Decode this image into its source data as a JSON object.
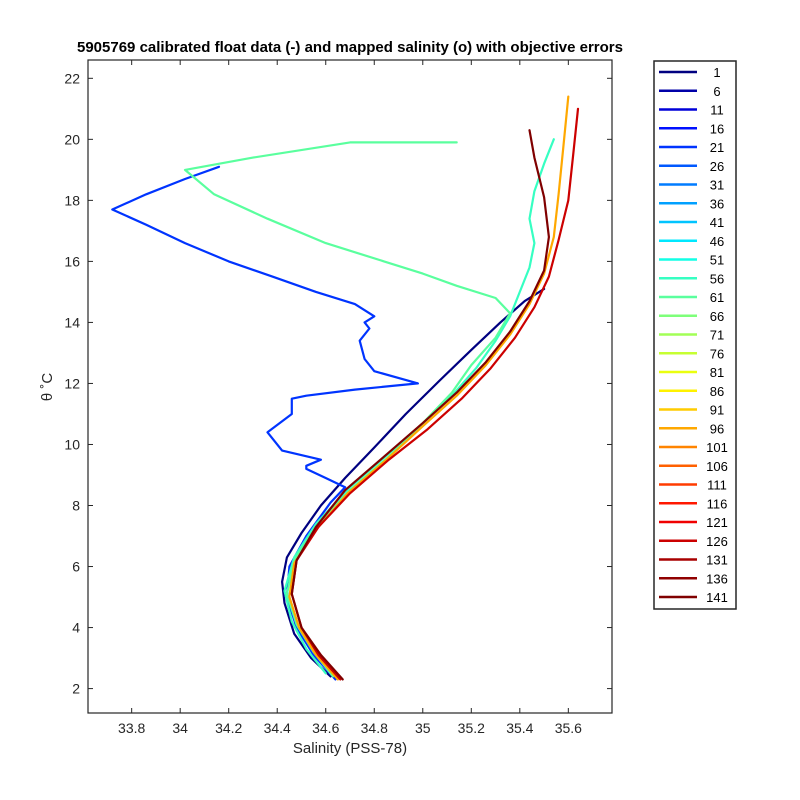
{
  "chart_data": {
    "type": "line",
    "title": "5905769 calibrated float data (-) and mapped salinity (o) with objective errors",
    "xlabel": "Salinity (PSS-78)",
    "ylabel": "θ ˚C",
    "xlim": [
      33.62,
      35.78
    ],
    "ylim": [
      1.2,
      22.6
    ],
    "xticks": [
      33.8,
      34,
      34.2,
      34.4,
      34.6,
      34.8,
      35,
      35.2,
      35.4,
      35.6
    ],
    "xtick_labels": [
      "33.8",
      "34",
      "34.2",
      "34.4",
      "34.6",
      "34.8",
      "35",
      "35.2",
      "35.4",
      "35.6"
    ],
    "yticks": [
      2,
      4,
      6,
      8,
      10,
      12,
      14,
      16,
      18,
      20,
      22
    ],
    "ytick_labels": [
      "2",
      "4",
      "6",
      "8",
      "10",
      "12",
      "14",
      "16",
      "18",
      "20",
      "22"
    ],
    "grid": false,
    "legend": {
      "placement": "outside-right",
      "entries": [
        "1",
        "6",
        "11",
        "16",
        "21",
        "26",
        "31",
        "36",
        "41",
        "46",
        "51",
        "56",
        "61",
        "66",
        "71",
        "76",
        "81",
        "86",
        "91",
        "96",
        "101",
        "106",
        "111",
        "116",
        "121",
        "126",
        "131",
        "136",
        "141"
      ],
      "colors": [
        "#000080",
        "#0000a8",
        "#0000d8",
        "#0010ff",
        "#0034ff",
        "#0058ff",
        "#007cff",
        "#00a0ff",
        "#00c4ff",
        "#00e8ff",
        "#12ffe6",
        "#36ffc2",
        "#5aff9e",
        "#7eff7a",
        "#a2ff56",
        "#c6ff32",
        "#eaff0e",
        "#fff200",
        "#ffcc00",
        "#ffa800",
        "#ff8400",
        "#ff6000",
        "#ff3c00",
        "#ff1800",
        "#f00000",
        "#cc0000",
        "#a80000",
        "#900000",
        "#800000"
      ]
    },
    "series": [
      {
        "name": "1",
        "color": "#000080",
        "x": [
          34.62,
          34.54,
          34.47,
          34.43,
          34.42,
          34.44,
          34.5,
          34.58,
          34.68,
          34.8,
          34.93,
          35.07,
          35.2,
          35.32,
          35.42,
          35.5
        ],
        "y": [
          2.4,
          3.0,
          3.8,
          4.8,
          5.5,
          6.3,
          7.1,
          8.0,
          8.9,
          9.9,
          11.0,
          12.1,
          13.1,
          14.0,
          14.7,
          15.1
        ]
      },
      {
        "name": "21",
        "color": "#0034ff",
        "x": [
          34.64,
          34.55,
          34.48,
          34.44,
          34.45,
          34.52,
          34.62,
          34.68,
          34.6,
          34.52,
          34.52,
          34.58,
          34.42,
          34.36,
          34.46,
          34.46,
          34.52,
          34.72,
          34.98,
          34.8,
          34.76,
          34.74,
          34.78,
          34.76,
          34.8,
          34.72,
          34.56,
          34.38,
          34.2,
          34.02,
          33.86,
          33.72,
          33.86,
          34.02,
          34.16
        ],
        "y": [
          2.3,
          3.1,
          4.0,
          5.0,
          6.0,
          7.0,
          8.1,
          8.6,
          8.9,
          9.2,
          9.3,
          9.5,
          9.8,
          10.4,
          11.0,
          11.5,
          11.6,
          11.8,
          12.0,
          12.4,
          12.8,
          13.4,
          13.8,
          14.0,
          14.2,
          14.6,
          15.0,
          15.5,
          16.0,
          16.6,
          17.2,
          17.7,
          18.2,
          18.7,
          19.1
        ]
      },
      {
        "name": "56",
        "color": "#36ffc2",
        "x": [
          34.6,
          34.52,
          34.46,
          34.43,
          34.47,
          34.56,
          34.7,
          34.86,
          35.0,
          35.12,
          35.22,
          35.3,
          35.36,
          35.4,
          35.44,
          35.46,
          35.44,
          35.46,
          35.5,
          35.54
        ],
        "y": [
          2.5,
          3.3,
          4.2,
          5.2,
          6.3,
          7.4,
          8.6,
          9.7,
          10.7,
          11.6,
          12.5,
          13.4,
          14.2,
          15.0,
          15.8,
          16.6,
          17.4,
          18.3,
          19.2,
          20.0
        ]
      },
      {
        "name": "66",
        "color": "#5aff9e",
        "x": [
          34.63,
          34.55,
          34.48,
          34.44,
          34.47,
          34.56,
          34.7,
          34.86,
          35.0,
          35.12,
          35.2,
          35.3,
          35.36,
          35.3,
          35.14,
          35.0,
          34.84,
          34.6,
          34.36,
          34.14,
          34.02,
          34.3,
          34.7,
          35.0,
          35.14
        ],
        "y": [
          2.4,
          3.2,
          4.1,
          5.1,
          6.2,
          7.3,
          8.5,
          9.6,
          10.7,
          11.7,
          12.6,
          13.5,
          14.3,
          14.8,
          15.2,
          15.6,
          16.0,
          16.6,
          17.4,
          18.2,
          19.0,
          19.4,
          19.9,
          19.9,
          19.9
        ]
      },
      {
        "name": "101",
        "color": "#ffa800",
        "x": [
          34.65,
          34.56,
          34.49,
          34.45,
          34.47,
          34.56,
          34.69,
          34.85,
          35.0,
          35.14,
          35.26,
          35.36,
          35.44,
          35.5,
          35.54,
          35.56,
          35.58,
          35.6
        ],
        "y": [
          2.3,
          3.1,
          4.0,
          5.0,
          6.1,
          7.2,
          8.4,
          9.5,
          10.6,
          11.6,
          12.6,
          13.6,
          14.6,
          15.6,
          16.8,
          18.2,
          19.8,
          21.4
        ]
      },
      {
        "name": "126",
        "color": "#cc0000",
        "x": [
          34.66,
          34.57,
          34.5,
          34.46,
          34.48,
          34.57,
          34.7,
          34.86,
          35.02,
          35.16,
          35.28,
          35.38,
          35.46,
          35.52,
          35.56,
          35.6,
          35.62,
          35.64
        ],
        "y": [
          2.3,
          3.1,
          4.0,
          5.1,
          6.2,
          7.3,
          8.4,
          9.5,
          10.5,
          11.5,
          12.5,
          13.5,
          14.5,
          15.5,
          16.7,
          18.0,
          19.5,
          21.0
        ]
      },
      {
        "name": "141",
        "color": "#800000",
        "x": [
          34.67,
          34.58,
          34.5,
          34.46,
          34.48,
          34.56,
          34.68,
          34.84,
          35.0,
          35.14,
          35.26,
          35.36,
          35.44,
          35.5,
          35.52,
          35.5,
          35.46,
          35.44
        ],
        "y": [
          2.3,
          3.1,
          4.0,
          5.1,
          6.2,
          7.3,
          8.5,
          9.6,
          10.7,
          11.7,
          12.7,
          13.7,
          14.7,
          15.7,
          16.8,
          18.1,
          19.4,
          20.3
        ]
      }
    ]
  }
}
